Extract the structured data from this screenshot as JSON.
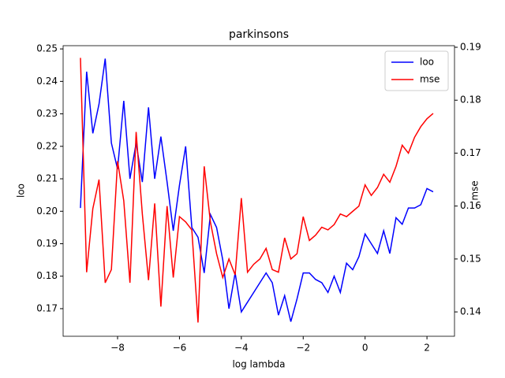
{
  "chart_data": {
    "type": "line",
    "title": "parkinsons",
    "xlabel": "log lambda",
    "ylabel": "loo",
    "y2label": "mse",
    "x": [
      -9.2,
      -9.0,
      -8.8,
      -8.6,
      -8.4,
      -8.2,
      -8.0,
      -7.8,
      -7.6,
      -7.4,
      -7.2,
      -7.0,
      -6.8,
      -6.6,
      -6.4,
      -6.2,
      -6.0,
      -5.8,
      -5.6,
      -5.4,
      -5.2,
      -5.0,
      -4.8,
      -4.6,
      -4.4,
      -4.2,
      -4.0,
      -3.8,
      -3.6,
      -3.4,
      -3.2,
      -3.0,
      -2.8,
      -2.6,
      -2.4,
      -2.2,
      -2.0,
      -1.8,
      -1.6,
      -1.4,
      -1.2,
      -1.0,
      -0.8,
      -0.6,
      -0.4,
      -0.2,
      0.0,
      0.2,
      0.4,
      0.6,
      0.8,
      1.0,
      1.2,
      1.4,
      1.6,
      1.8,
      2.0,
      2.2
    ],
    "series": [
      {
        "name": "loo",
        "color": "#0000ff",
        "axis": "y",
        "values": [
          0.201,
          0.243,
          0.224,
          0.233,
          0.247,
          0.221,
          0.213,
          0.234,
          0.21,
          0.221,
          0.209,
          0.232,
          0.21,
          0.223,
          0.209,
          0.194,
          0.208,
          0.22,
          0.195,
          0.192,
          0.181,
          0.199,
          0.195,
          0.185,
          0.17,
          0.181,
          0.169,
          0.172,
          0.175,
          0.178,
          0.181,
          0.178,
          0.168,
          0.174,
          0.166,
          0.173,
          0.181,
          0.181,
          0.179,
          0.178,
          0.175,
          0.18,
          0.175,
          0.184,
          0.182,
          0.186,
          0.193,
          0.19,
          0.187,
          0.194,
          0.187,
          0.198,
          0.196,
          0.201,
          0.201,
          0.202,
          0.207,
          0.206
        ]
      },
      {
        "name": "mse",
        "color": "#ff0000",
        "axis": "y2",
        "values": [
          0.188,
          0.1475,
          0.1595,
          0.165,
          0.1455,
          0.148,
          0.1685,
          0.161,
          0.1455,
          0.174,
          0.1585,
          0.146,
          0.1605,
          0.141,
          0.16,
          0.1465,
          0.158,
          0.157,
          0.1555,
          0.138,
          0.1675,
          0.157,
          0.151,
          0.1465,
          0.15,
          0.147,
          0.1615,
          0.1475,
          0.149,
          0.15,
          0.152,
          0.148,
          0.1475,
          0.154,
          0.15,
          0.151,
          0.158,
          0.1535,
          0.1545,
          0.156,
          0.1555,
          0.1565,
          0.1585,
          0.158,
          0.159,
          0.16,
          0.164,
          0.162,
          0.1635,
          0.166,
          0.1645,
          0.1675,
          0.1715,
          0.17,
          0.173,
          0.175,
          0.1765,
          0.1775
        ]
      }
    ],
    "xlim": [
      -9.76,
      2.89
    ],
    "xticks": [
      {
        "value": -8,
        "label": "−8"
      },
      {
        "value": -6,
        "label": "−6"
      },
      {
        "value": -4,
        "label": "−4"
      },
      {
        "value": -2,
        "label": "−2"
      },
      0,
      2
    ],
    "ylim": [
      0.1615,
      0.251
    ],
    "yticks": [
      0.17,
      0.18,
      0.19,
      {
        "value": 0.2,
        "label": "0.20"
      },
      0.21,
      0.22,
      0.23,
      0.24,
      0.25
    ],
    "y2lim": [
      0.1354,
      0.1903
    ],
    "y2ticks": [
      0.14,
      0.15,
      0.16,
      0.17,
      0.18,
      0.19
    ],
    "legend": "upper right"
  }
}
